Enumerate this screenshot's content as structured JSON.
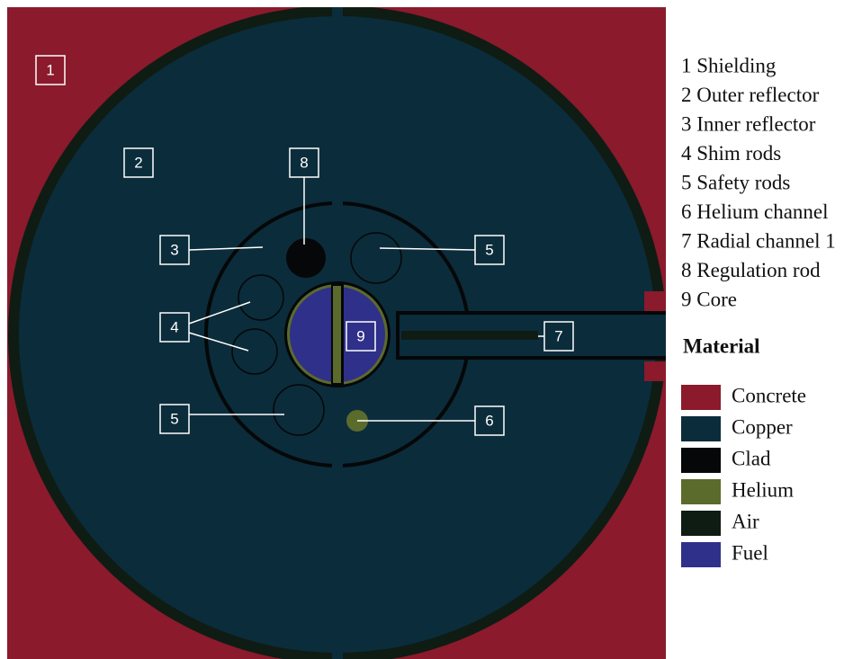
{
  "callouts": [
    {
      "label": "1"
    },
    {
      "label": "2"
    },
    {
      "label": "8"
    },
    {
      "label": "3"
    },
    {
      "label": "5"
    },
    {
      "label": "4"
    },
    {
      "label": "9"
    },
    {
      "label": "7"
    },
    {
      "label": "5"
    },
    {
      "label": "6"
    }
  ],
  "legend": {
    "items": [
      "1 Shielding",
      "2 Outer reflector",
      "3 Inner reflector",
      "4 Shim rods",
      "5 Safety rods",
      "6 Helium channel",
      "7 Radial channel 1",
      "8 Regulation rod",
      "9 Core"
    ],
    "material_title": "Material",
    "materials": [
      {
        "name": "Concrete",
        "color": "#8a1a2c"
      },
      {
        "name": "Copper",
        "color": "#0b2c3b"
      },
      {
        "name": "Clad",
        "color": "#050708"
      },
      {
        "name": "Helium",
        "color": "#5b6b2c"
      },
      {
        "name": "Air",
        "color": "#0f1c13"
      },
      {
        "name": "Fuel",
        "color": "#2f3089"
      }
    ]
  }
}
